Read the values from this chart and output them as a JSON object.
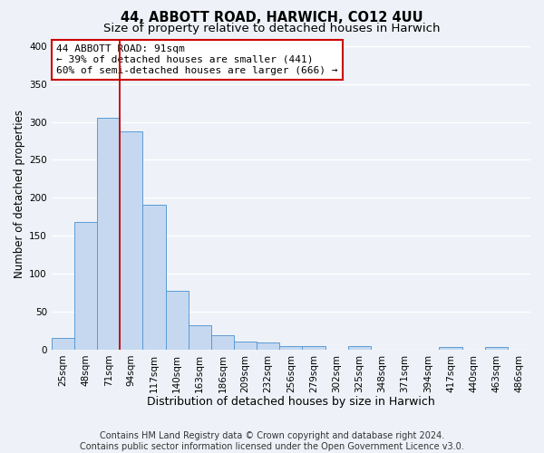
{
  "title": "44, ABBOTT ROAD, HARWICH, CO12 4UU",
  "subtitle": "Size of property relative to detached houses in Harwich",
  "xlabel": "Distribution of detached houses by size in Harwich",
  "ylabel": "Number of detached properties",
  "bin_labels": [
    "25sqm",
    "48sqm",
    "71sqm",
    "94sqm",
    "117sqm",
    "140sqm",
    "163sqm",
    "186sqm",
    "209sqm",
    "232sqm",
    "256sqm",
    "279sqm",
    "302sqm",
    "325sqm",
    "348sqm",
    "371sqm",
    "394sqm",
    "417sqm",
    "440sqm",
    "463sqm",
    "486sqm"
  ],
  "bar_values": [
    15,
    168,
    305,
    288,
    191,
    77,
    32,
    19,
    10,
    9,
    5,
    5,
    0,
    4,
    0,
    0,
    0,
    3,
    0,
    3,
    0
  ],
  "bar_color": "#c5d8f0",
  "bar_edge_color": "#5b9bd5",
  "vline_bin_index": 3,
  "vline_color": "#cc0000",
  "ylim": [
    0,
    410
  ],
  "yticks": [
    0,
    50,
    100,
    150,
    200,
    250,
    300,
    350,
    400
  ],
  "annotation_text": "44 ABBOTT ROAD: 91sqm\n← 39% of detached houses are smaller (441)\n60% of semi-detached houses are larger (666) →",
  "annotation_box_color": "#ffffff",
  "annotation_box_edge_color": "#cc0000",
  "footer_line1": "Contains HM Land Registry data © Crown copyright and database right 2024.",
  "footer_line2": "Contains public sector information licensed under the Open Government Licence v3.0.",
  "background_color": "#eef2f8",
  "plot_bg_color": "#eef2f8",
  "grid_color": "#ffffff",
  "title_fontsize": 10.5,
  "subtitle_fontsize": 9.5,
  "xlabel_fontsize": 9,
  "ylabel_fontsize": 8.5,
  "tick_fontsize": 7.5,
  "annotation_fontsize": 8,
  "footer_fontsize": 7
}
